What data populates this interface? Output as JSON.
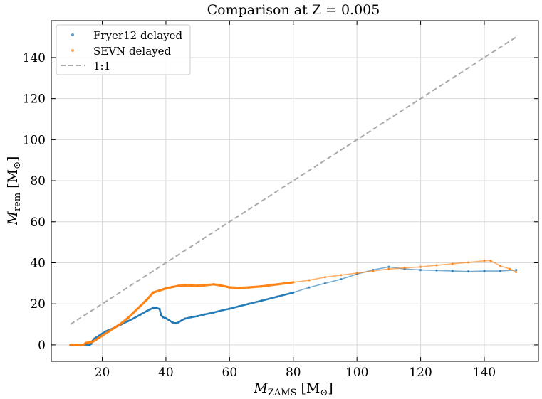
{
  "chart_data": {
    "type": "scatter",
    "title": "Comparison at Z = 0.005",
    "xlabel": {
      "main": "M",
      "sub": "ZAMS",
      "unit": "[M",
      "unit_sub": "⊙",
      "unit_close": "]"
    },
    "ylabel": {
      "main": "M",
      "sub": "rem",
      "unit": "[M",
      "unit_sub": "⊙",
      "unit_close": "]"
    },
    "xlim": [
      4,
      157
    ],
    "ylim": [
      -8,
      158
    ],
    "xticks": [
      20,
      40,
      60,
      80,
      100,
      120,
      140
    ],
    "yticks": [
      0,
      20,
      40,
      60,
      80,
      100,
      120,
      140
    ],
    "xtick_labels": [
      "20",
      "40",
      "60",
      "80",
      "100",
      "120",
      "140"
    ],
    "ytick_labels": [
      "0",
      "20",
      "40",
      "60",
      "80",
      "100",
      "120",
      "140"
    ],
    "grid": true,
    "legend_position": "top-left",
    "series": [
      {
        "name": "Fryer12 delayed",
        "color": "#1f77b4",
        "marker": "dot",
        "points": [
          [
            10,
            0
          ],
          [
            12,
            0
          ],
          [
            14,
            0
          ],
          [
            16,
            0
          ],
          [
            16.5,
            0.5
          ],
          [
            17,
            2
          ],
          [
            17.5,
            3
          ],
          [
            18,
            3.5
          ],
          [
            19,
            4.5
          ],
          [
            20,
            5.5
          ],
          [
            21,
            6.5
          ],
          [
            22,
            7.2
          ],
          [
            24,
            8.5
          ],
          [
            26,
            10
          ],
          [
            28,
            11.5
          ],
          [
            30,
            13
          ],
          [
            32,
            14.8
          ],
          [
            34,
            16.5
          ],
          [
            35,
            17.3
          ],
          [
            36,
            18
          ],
          [
            37,
            18
          ],
          [
            38,
            17.5
          ],
          [
            38.5,
            14.5
          ],
          [
            39,
            13.5
          ],
          [
            40,
            13
          ],
          [
            41,
            12
          ],
          [
            42,
            11
          ],
          [
            43,
            10.5
          ],
          [
            44,
            11
          ],
          [
            45,
            12
          ],
          [
            46,
            12.8
          ],
          [
            48,
            13.5
          ],
          [
            50,
            14
          ],
          [
            52,
            14.8
          ],
          [
            55,
            15.8
          ],
          [
            58,
            17
          ],
          [
            60,
            17.6
          ],
          [
            63,
            18.8
          ],
          [
            66,
            20
          ],
          [
            70,
            21.5
          ],
          [
            75,
            23.5
          ],
          [
            80,
            25.5
          ],
          [
            85,
            28
          ],
          [
            90,
            30
          ],
          [
            95,
            32
          ],
          [
            100,
            34.5
          ],
          [
            105,
            36.5
          ],
          [
            110,
            38
          ],
          [
            115,
            37
          ],
          [
            120,
            36.5
          ],
          [
            125,
            36.3
          ],
          [
            130,
            36
          ],
          [
            135,
            35.8
          ],
          [
            140,
            36
          ],
          [
            145,
            36
          ],
          [
            150,
            36.5
          ]
        ]
      },
      {
        "name": "SEVN delayed",
        "color": "#ff7f0e",
        "marker": "dot",
        "points": [
          [
            10,
            0
          ],
          [
            12,
            0
          ],
          [
            14,
            0
          ],
          [
            15,
            1
          ],
          [
            16,
            1.2
          ],
          [
            17,
            1.5
          ],
          [
            18,
            2.5
          ],
          [
            19,
            3.5
          ],
          [
            20,
            4.5
          ],
          [
            22,
            6.5
          ],
          [
            24,
            8.5
          ],
          [
            26,
            10.5
          ],
          [
            28,
            13
          ],
          [
            30,
            16
          ],
          [
            32,
            19
          ],
          [
            34,
            22
          ],
          [
            36,
            25.5
          ],
          [
            38,
            26.5
          ],
          [
            40,
            27.5
          ],
          [
            42,
            28.2
          ],
          [
            44,
            28.8
          ],
          [
            46,
            29
          ],
          [
            48,
            28.9
          ],
          [
            50,
            28.8
          ],
          [
            52,
            29
          ],
          [
            55,
            29.5
          ],
          [
            57,
            29
          ],
          [
            60,
            28
          ],
          [
            63,
            27.8
          ],
          [
            66,
            28
          ],
          [
            70,
            28.5
          ],
          [
            75,
            29.5
          ],
          [
            80,
            30.5
          ],
          [
            85,
            31.5
          ],
          [
            90,
            33
          ],
          [
            95,
            34
          ],
          [
            100,
            35
          ],
          [
            105,
            36
          ],
          [
            110,
            37
          ],
          [
            115,
            37.5
          ],
          [
            120,
            38
          ],
          [
            125,
            38.8
          ],
          [
            130,
            39.5
          ],
          [
            135,
            40.2
          ],
          [
            140,
            41
          ],
          [
            142,
            41
          ],
          [
            145,
            38.5
          ],
          [
            148,
            37
          ],
          [
            150,
            35.5
          ]
        ]
      },
      {
        "name": "1:1",
        "color": "#aaaaaa",
        "marker": "dashed-line",
        "points": [
          [
            10,
            10
          ],
          [
            150,
            150
          ]
        ]
      }
    ]
  }
}
